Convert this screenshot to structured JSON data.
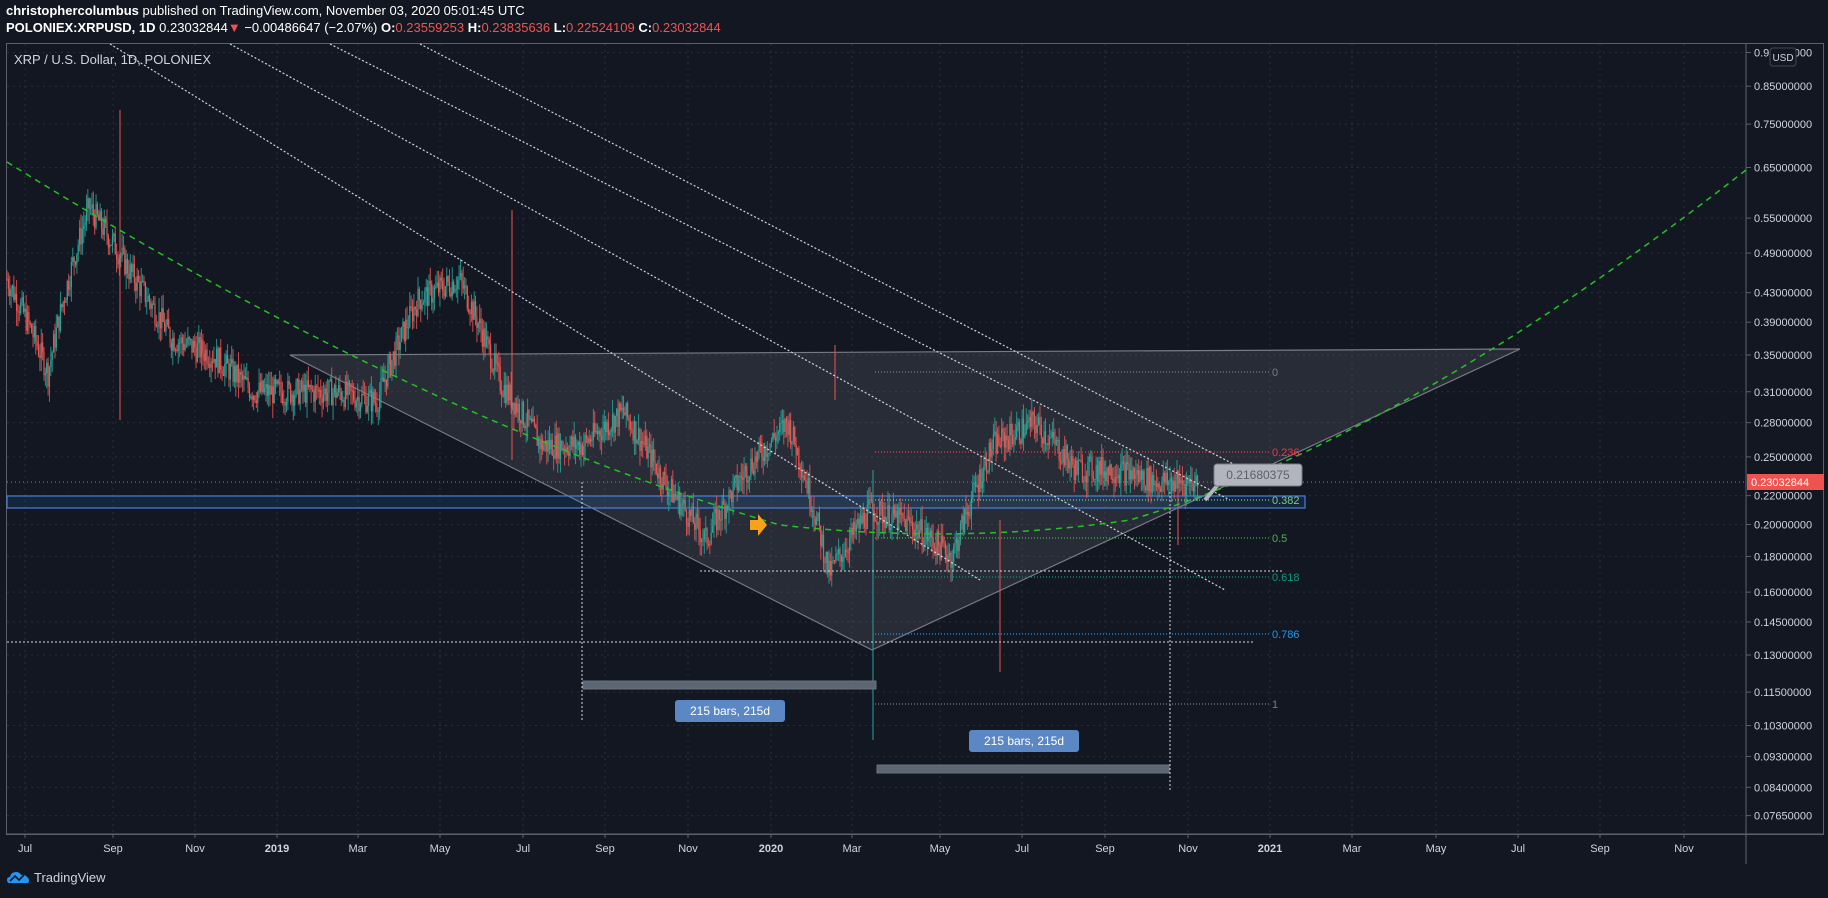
{
  "header": {
    "author": "christophercolumbus",
    "published_text": "published on TradingView.com, November 03, 2020 05:01:45 UTC",
    "symbol": "POLONIEX:XRPUSD, 1D",
    "last": "0.23032844",
    "change_arrow": "▼",
    "change": "−0.00486647 (−2.07%)",
    "o_label": "O:",
    "o": "0.23559253",
    "h_label": "H:",
    "h": "0.23835636",
    "l_label": "L:",
    "l": "0.22524109",
    "c_label": "C:",
    "c": "0.23032844"
  },
  "legend": {
    "title": "XRP / U.S. Dollar, 1D, POLONIEX"
  },
  "price_axis": {
    "currency_badge": "USD",
    "current_price_label": "0.23032844",
    "current_price_color": "#ef5350"
  },
  "footer": {
    "brand": "TradingView"
  },
  "chart_data": {
    "type": "candlestick",
    "title": "XRP / U.S. Dollar, 1D, POLONIEX",
    "xlabel": "",
    "ylabel": "USD (log scale)",
    "y_scale": "log",
    "ylim": [
      0.0765,
      0.95
    ],
    "grid": true,
    "y_ticks": [
      "0.95000000",
      "0.85000000",
      "0.75000000",
      "0.65000000",
      "0.55000000",
      "0.49000000",
      "0.43000000",
      "0.39000000",
      "0.35000000",
      "0.31000000",
      "0.28000000",
      "0.25000000",
      "0.22000000",
      "0.20000000",
      "0.18000000",
      "0.16000000",
      "0.14500000",
      "0.13000000",
      "0.11500000",
      "0.10300000",
      "0.09300000",
      "0.08400000",
      "0.07650000"
    ],
    "x_ticks": [
      "Jul",
      "Sep",
      "Nov",
      "2019",
      "Mar",
      "May",
      "Jul",
      "Sep",
      "Nov",
      "2020",
      "Mar",
      "May",
      "Jul",
      "Sep",
      "Nov",
      "2021",
      "Mar",
      "May",
      "Jul",
      "Sep",
      "Nov"
    ],
    "current_price": 0.23032844,
    "approx_monthly_closes": [
      {
        "x": "Jul 2018",
        "v": 0.45
      },
      {
        "x": "Aug 2018",
        "v": 0.33
      },
      {
        "x": "Sep 2018",
        "v": 0.57
      },
      {
        "x": "Oct 2018",
        "v": 0.46
      },
      {
        "x": "Nov 2018",
        "v": 0.37
      },
      {
        "x": "Dec 2018",
        "v": 0.35
      },
      {
        "x": "Jan 2019",
        "v": 0.31
      },
      {
        "x": "Feb 2019",
        "v": 0.31
      },
      {
        "x": "Mar 2019",
        "v": 0.31
      },
      {
        "x": "Apr 2019",
        "v": 0.3
      },
      {
        "x": "May 2019",
        "v": 0.42
      },
      {
        "x": "Jun 2019",
        "v": 0.45
      },
      {
        "x": "Jul 2019",
        "v": 0.32
      },
      {
        "x": "Aug 2019",
        "v": 0.26
      },
      {
        "x": "Sep 2019",
        "v": 0.26
      },
      {
        "x": "Oct 2019",
        "v": 0.29
      },
      {
        "x": "Nov 2019",
        "v": 0.23
      },
      {
        "x": "Dec 2019",
        "v": 0.19
      },
      {
        "x": "Jan 2020",
        "v": 0.24
      },
      {
        "x": "Feb 2020",
        "v": 0.28
      },
      {
        "x": "Mar 2020",
        "v": 0.17
      },
      {
        "x": "Apr 2020",
        "v": 0.21
      },
      {
        "x": "May 2020",
        "v": 0.2
      },
      {
        "x": "Jun 2020",
        "v": 0.18
      },
      {
        "x": "Jul 2020",
        "v": 0.26
      },
      {
        "x": "Aug 2020",
        "v": 0.28
      },
      {
        "x": "Sep 2020",
        "v": 0.24
      },
      {
        "x": "Oct 2020",
        "v": 0.24
      },
      {
        "x": "Nov 2020",
        "v": 0.23
      }
    ],
    "annotations": {
      "fib_levels": [
        {
          "label": "0",
          "color": "#787b86"
        },
        {
          "label": "0.236",
          "color": "#f23645"
        },
        {
          "label": "0.382",
          "color": "#81c784"
        },
        {
          "label": "0.5",
          "color": "#4caf50"
        },
        {
          "label": "0.618",
          "color": "#089981"
        },
        {
          "label": "0.786",
          "color": "#2196f3"
        },
        {
          "label": "1",
          "color": "#787b86"
        }
      ],
      "price_callout": "0.21680375",
      "date_ranges": [
        "215 bars, 215d",
        "215 bars, 215d"
      ],
      "triangle": {
        "top": 0.35,
        "apex_low": 0.135
      },
      "support_zone": [
        0.213,
        0.22
      ],
      "parabolic_curve": "green dashed"
    }
  }
}
